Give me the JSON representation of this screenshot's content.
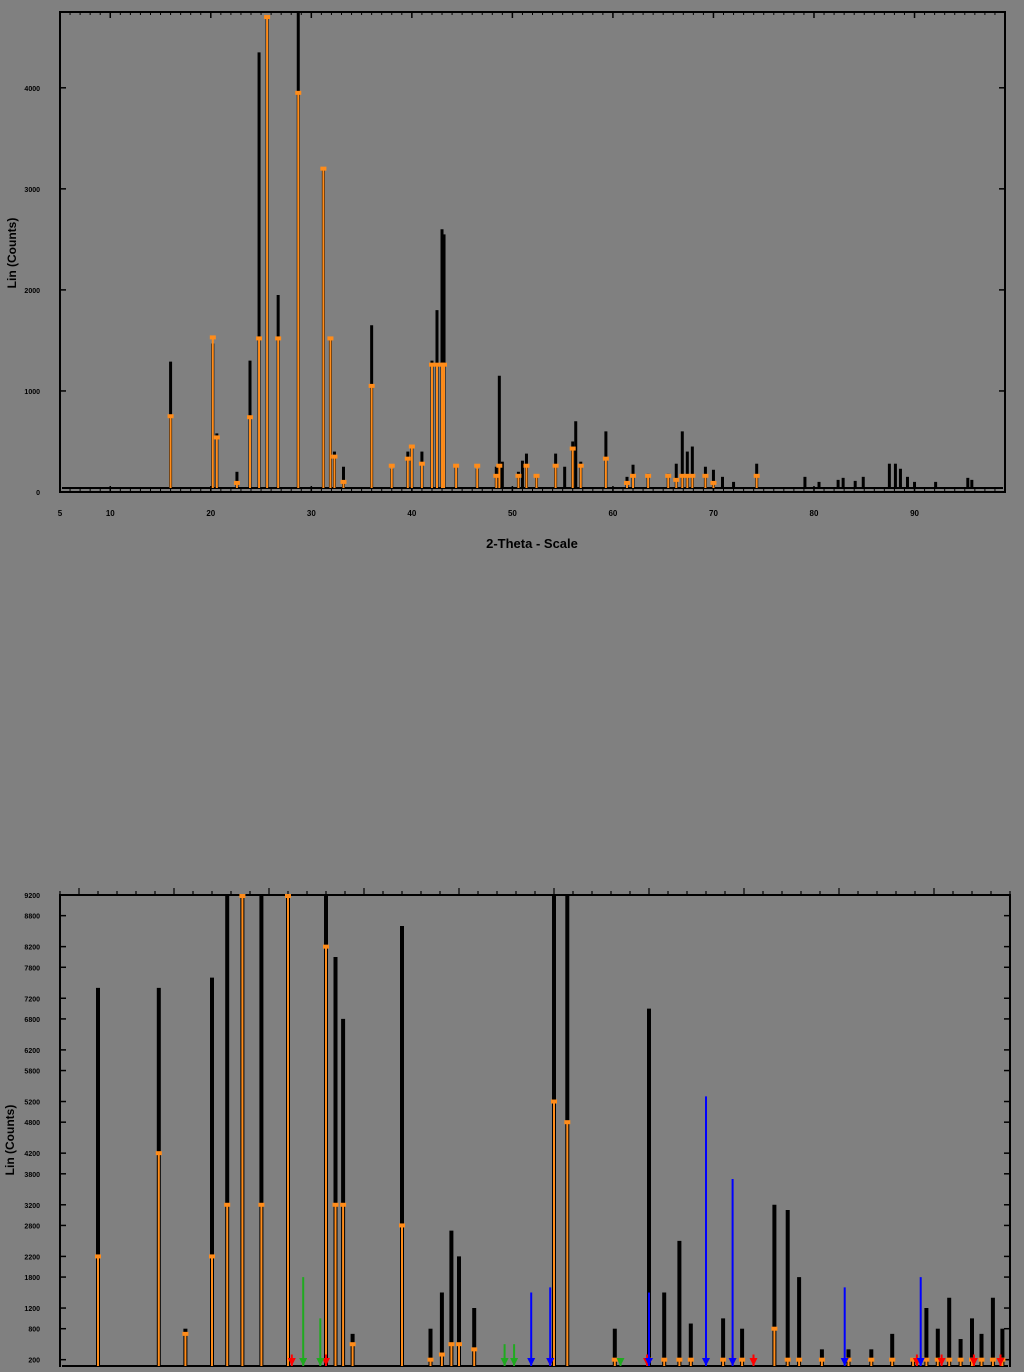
{
  "colors": {
    "background": "#808080",
    "measured": "#000000",
    "calculated": "#ff8c1a",
    "marker_red": "#ff0000",
    "marker_green": "#1faa1f",
    "marker_blue": "#0000ff"
  },
  "chart_data": [
    {
      "type": "line",
      "title": "",
      "xlabel": "2-Theta - Scale",
      "ylabel": "Lin (Counts)",
      "xlim": [
        5,
        99
      ],
      "ylim": [
        0,
        4750
      ],
      "x_ticks": [
        5,
        10,
        20,
        30,
        40,
        50,
        60,
        70,
        80,
        90
      ],
      "x_tick_labels": [
        "5",
        "10",
        "20",
        "30",
        "40",
        "50",
        "60",
        "70",
        "80",
        "90"
      ],
      "y_ticks": [
        0,
        1000,
        2000,
        3000,
        4000
      ],
      "y_tick_labels": [
        "0",
        "1000",
        "2000",
        "3000",
        "4000"
      ],
      "grid": false,
      "series": [
        {
          "role": "measured",
          "peaks": [
            [
              16.0,
              1290
            ],
            [
              20.2,
              1470
            ],
            [
              20.6,
              580
            ],
            [
              22.6,
              200
            ],
            [
              23.9,
              1300
            ],
            [
              24.8,
              4350
            ],
            [
              25.6,
              4700
            ],
            [
              26.7,
              1950
            ],
            [
              28.7,
              4750
            ],
            [
              31.2,
              3200
            ],
            [
              31.9,
              1500
            ],
            [
              32.3,
              400
            ],
            [
              33.2,
              250
            ],
            [
              36.0,
              1650
            ],
            [
              38.0,
              230
            ],
            [
              39.6,
              400
            ],
            [
              40.0,
              450
            ],
            [
              41.0,
              400
            ],
            [
              42.0,
              1300
            ],
            [
              42.5,
              1800
            ],
            [
              43.0,
              2600
            ],
            [
              43.2,
              2550
            ],
            [
              44.4,
              250
            ],
            [
              46.5,
              230
            ],
            [
              48.4,
              250
            ],
            [
              48.7,
              1150
            ],
            [
              49.0,
              300
            ],
            [
              50.6,
              200
            ],
            [
              51.0,
              310
            ],
            [
              51.4,
              380
            ],
            [
              52.4,
              150
            ],
            [
              54.3,
              380
            ],
            [
              55.2,
              250
            ],
            [
              56.0,
              500
            ],
            [
              56.3,
              700
            ],
            [
              56.8,
              300
            ],
            [
              59.3,
              600
            ],
            [
              61.4,
              150
            ],
            [
              62.0,
              270
            ],
            [
              63.5,
              180
            ],
            [
              65.5,
              180
            ],
            [
              66.3,
              280
            ],
            [
              66.9,
              600
            ],
            [
              67.4,
              400
            ],
            [
              67.9,
              450
            ],
            [
              69.2,
              250
            ],
            [
              70.0,
              220
            ],
            [
              70.9,
              150
            ],
            [
              72.0,
              100
            ],
            [
              74.3,
              280
            ],
            [
              79.1,
              150
            ],
            [
              80.5,
              100
            ],
            [
              82.4,
              120
            ],
            [
              82.9,
              140
            ],
            [
              84.1,
              110
            ],
            [
              84.9,
              150
            ],
            [
              87.5,
              280
            ],
            [
              88.1,
              280
            ],
            [
              88.6,
              230
            ],
            [
              89.3,
              150
            ],
            [
              90.0,
              100
            ],
            [
              92.1,
              100
            ],
            [
              95.3,
              140
            ],
            [
              95.7,
              120
            ]
          ]
        },
        {
          "role": "calculated",
          "peaks": [
            [
              16.0,
              750
            ],
            [
              20.2,
              1530
            ],
            [
              20.6,
              540
            ],
            [
              22.6,
              90
            ],
            [
              23.9,
              740
            ],
            [
              24.8,
              1520
            ],
            [
              25.6,
              4700
            ],
            [
              26.7,
              1520
            ],
            [
              28.7,
              3950
            ],
            [
              31.2,
              3200
            ],
            [
              31.9,
              1520
            ],
            [
              32.3,
              350
            ],
            [
              33.2,
              100
            ],
            [
              36.0,
              1050
            ],
            [
              38.0,
              260
            ],
            [
              39.6,
              330
            ],
            [
              40.0,
              450
            ],
            [
              41.0,
              280
            ],
            [
              42.0,
              1260
            ],
            [
              42.5,
              1260
            ],
            [
              43.0,
              1260
            ],
            [
              43.2,
              1260
            ],
            [
              44.4,
              260
            ],
            [
              46.5,
              260
            ],
            [
              48.4,
              160
            ],
            [
              48.7,
              260
            ],
            [
              50.6,
              160
            ],
            [
              51.4,
              260
            ],
            [
              52.4,
              160
            ],
            [
              54.3,
              260
            ],
            [
              56.0,
              430
            ],
            [
              56.8,
              260
            ],
            [
              59.3,
              330
            ],
            [
              61.4,
              90
            ],
            [
              62.0,
              160
            ],
            [
              63.5,
              160
            ],
            [
              65.5,
              160
            ],
            [
              66.3,
              120
            ],
            [
              66.9,
              160
            ],
            [
              67.4,
              160
            ],
            [
              67.9,
              160
            ],
            [
              69.2,
              160
            ],
            [
              70.0,
              90
            ],
            [
              74.3,
              160
            ]
          ]
        }
      ]
    },
    {
      "type": "line",
      "title": "",
      "xlabel": "",
      "ylabel": "Lin (Counts)",
      "xlim": [
        14,
        64
      ],
      "ylim": [
        0,
        9200
      ],
      "y_ticks": [
        200,
        800,
        1200,
        1800,
        2200,
        2800,
        3200,
        3800,
        4200,
        4800,
        5200,
        5800,
        6200,
        6800,
        7200,
        7800,
        8200,
        8800,
        9200
      ],
      "grid": false,
      "series": [
        {
          "role": "measured",
          "peaks": [
            [
              16.0,
              7400
            ],
            [
              19.2,
              7400
            ],
            [
              20.6,
              800
            ],
            [
              22.0,
              7600
            ],
            [
              22.8,
              9200
            ],
            [
              23.6,
              9200
            ],
            [
              24.6,
              9200
            ],
            [
              26.0,
              9200
            ],
            [
              28.0,
              9200
            ],
            [
              28.5,
              8000
            ],
            [
              28.9,
              6800
            ],
            [
              29.4,
              700
            ],
            [
              32.0,
              8600
            ],
            [
              33.5,
              800
            ],
            [
              34.1,
              1500
            ],
            [
              34.6,
              2700
            ],
            [
              35.0,
              2200
            ],
            [
              35.8,
              1200
            ],
            [
              40.0,
              9200
            ],
            [
              40.7,
              9200
            ],
            [
              43.2,
              800
            ],
            [
              45.0,
              7000
            ],
            [
              45.8,
              1500
            ],
            [
              46.6,
              2500
            ],
            [
              47.2,
              900
            ],
            [
              48.9,
              1000
            ],
            [
              49.9,
              800
            ],
            [
              51.6,
              3200
            ],
            [
              52.3,
              3100
            ],
            [
              52.9,
              1800
            ],
            [
              54.1,
              400
            ],
            [
              55.5,
              400
            ],
            [
              56.7,
              400
            ],
            [
              57.8,
              700
            ],
            [
              58.9,
              200
            ],
            [
              59.6,
              1200
            ],
            [
              60.2,
              800
            ],
            [
              60.8,
              1400
            ],
            [
              61.4,
              600
            ],
            [
              62.0,
              1000
            ],
            [
              62.5,
              700
            ],
            [
              63.1,
              1400
            ],
            [
              63.6,
              800
            ]
          ]
        },
        {
          "role": "calculated",
          "peaks": [
            [
              16.0,
              2200
            ],
            [
              19.2,
              4200
            ],
            [
              20.6,
              700
            ],
            [
              22.0,
              2200
            ],
            [
              22.8,
              3200
            ],
            [
              23.6,
              9200
            ],
            [
              24.6,
              3200
            ],
            [
              26.0,
              9200
            ],
            [
              28.0,
              8200
            ],
            [
              28.5,
              3200
            ],
            [
              28.9,
              3200
            ],
            [
              29.4,
              500
            ],
            [
              32.0,
              2800
            ],
            [
              33.5,
              200
            ],
            [
              34.1,
              300
            ],
            [
              34.6,
              500
            ],
            [
              35.0,
              500
            ],
            [
              35.8,
              400
            ],
            [
              40.0,
              5200
            ],
            [
              40.7,
              4800
            ],
            [
              43.2,
              200
            ],
            [
              45.0,
              200
            ],
            [
              45.8,
              200
            ],
            [
              46.6,
              200
            ],
            [
              47.2,
              200
            ],
            [
              48.9,
              200
            ],
            [
              49.9,
              200
            ],
            [
              51.6,
              800
            ],
            [
              52.3,
              200
            ],
            [
              52.9,
              200
            ],
            [
              54.1,
              200
            ],
            [
              55.5,
              200
            ],
            [
              56.7,
              200
            ],
            [
              57.8,
              200
            ],
            [
              58.9,
              200
            ],
            [
              59.6,
              200
            ],
            [
              60.2,
              200
            ],
            [
              60.8,
              200
            ],
            [
              61.4,
              200
            ],
            [
              62.0,
              200
            ],
            [
              62.5,
              200
            ],
            [
              63.1,
              200
            ],
            [
              63.6,
              200
            ]
          ]
        },
        {
          "role": "marker",
          "color": "red",
          "x": [
            26.2,
            28.0,
            39.8,
            44.9,
            49.4,
            50.5,
            59.1,
            60.4,
            62.1,
            63.5
          ],
          "values": [
            300,
            300,
            300,
            300,
            300,
            300,
            300,
            300,
            300,
            300
          ]
        },
        {
          "role": "marker",
          "color": "green",
          "x": [
            26.8,
            27.7,
            37.4,
            37.9,
            43.5
          ],
          "values": [
            1800,
            1000,
            500,
            500,
            200
          ]
        },
        {
          "role": "marker",
          "color": "blue",
          "x": [
            38.8,
            39.8,
            45.0,
            48.0,
            49.4,
            55.3,
            59.3
          ],
          "values": [
            1500,
            1600,
            1500,
            5300,
            3700,
            1600,
            1800
          ]
        }
      ]
    }
  ]
}
